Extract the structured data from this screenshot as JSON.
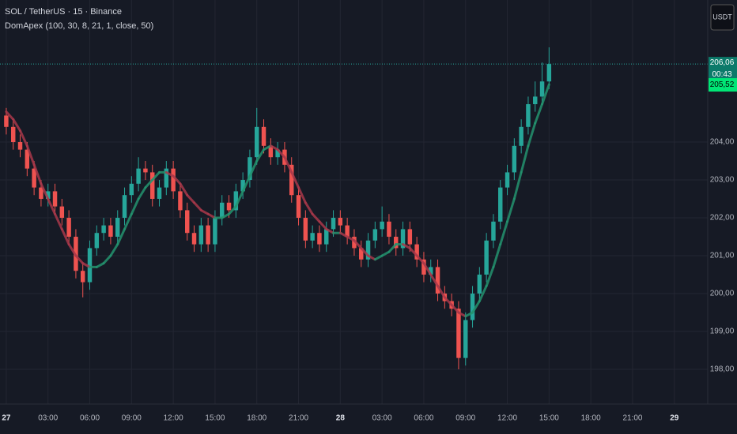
{
  "chart_data": {
    "type": "candlestick",
    "title": "SOL / TetherUS · 15 · Binance",
    "currency": "USDT",
    "countdown": "00:43",
    "last_price": {
      "value": 206.06,
      "label": "206,06"
    },
    "up_color": "#26a69a",
    "down_color": "#ef5350",
    "grid": true,
    "open": [
      204.7,
      204.4,
      204.0,
      203.8,
      203.3,
      202.8,
      202.5,
      202.7,
      202.3,
      202.0,
      201.5,
      200.6,
      200.3,
      201.2,
      201.6,
      201.8,
      201.5,
      202.0,
      202.6,
      202.9,
      203.3,
      203.2,
      202.5,
      202.8,
      203.3,
      202.7,
      202.2,
      201.6,
      201.3,
      201.8,
      201.3,
      202.0,
      202.4,
      202.2,
      202.7,
      203.0,
      203.6,
      204.4,
      203.9,
      203.6,
      203.8,
      203.4,
      202.6,
      202.0,
      201.4,
      201.6,
      201.3,
      201.7,
      202.0,
      201.8,
      201.5,
      201.2,
      200.9,
      201.4,
      201.7,
      201.9,
      201.5,
      201.2,
      201.7,
      201.3,
      200.9,
      200.5,
      200.7,
      200.0,
      199.8,
      199.6,
      198.3,
      199.3,
      200.0,
      200.5,
      201.4,
      201.9,
      202.8,
      203.2,
      203.9,
      204.4,
      205.0,
      205.2,
      205.6
    ],
    "high": [
      204.9,
      204.6,
      204.2,
      204.0,
      203.5,
      203.0,
      202.9,
      202.9,
      202.5,
      202.2,
      201.7,
      200.8,
      201.4,
      201.8,
      202.0,
      202.0,
      202.2,
      202.8,
      203.1,
      203.6,
      203.5,
      203.4,
      203.0,
      203.5,
      203.5,
      202.9,
      202.4,
      201.8,
      202.0,
      202.0,
      202.2,
      202.6,
      202.6,
      202.9,
      203.2,
      203.8,
      204.9,
      204.6,
      204.1,
      204.0,
      204.0,
      203.6,
      202.8,
      202.2,
      201.8,
      201.8,
      201.9,
      202.2,
      202.2,
      202.0,
      201.7,
      201.4,
      201.6,
      201.9,
      202.3,
      202.1,
      201.7,
      201.9,
      201.9,
      201.5,
      201.1,
      200.9,
      200.9,
      200.2,
      200.0,
      199.8,
      199.5,
      200.2,
      200.7,
      201.6,
      202.1,
      203.0,
      203.4,
      204.1,
      204.6,
      205.2,
      205.6,
      206.1,
      206.5
    ],
    "low": [
      204.2,
      203.8,
      203.6,
      203.1,
      202.6,
      202.3,
      202.3,
      202.1,
      201.8,
      201.3,
      200.4,
      199.9,
      200.1,
      201.0,
      201.4,
      201.3,
      201.3,
      201.8,
      202.4,
      202.7,
      203.0,
      202.3,
      202.3,
      202.6,
      202.5,
      202.0,
      201.4,
      201.1,
      201.1,
      201.1,
      201.1,
      201.8,
      202.0,
      202.0,
      202.5,
      202.8,
      203.4,
      203.7,
      203.4,
      203.4,
      203.2,
      202.4,
      201.8,
      201.2,
      201.2,
      201.1,
      201.1,
      201.5,
      201.6,
      201.3,
      201.0,
      200.7,
      200.7,
      201.2,
      201.5,
      201.3,
      201.0,
      201.0,
      201.1,
      200.7,
      200.3,
      200.3,
      199.8,
      199.6,
      199.4,
      198.0,
      198.1,
      199.1,
      199.8,
      200.3,
      201.2,
      201.7,
      202.6,
      203.0,
      203.7,
      204.2,
      204.8,
      205.0,
      205.4
    ],
    "close": [
      204.4,
      204.0,
      203.8,
      203.3,
      202.8,
      202.5,
      202.7,
      202.3,
      202.0,
      201.5,
      200.6,
      200.3,
      201.2,
      201.6,
      201.8,
      201.5,
      202.0,
      202.6,
      202.9,
      203.3,
      203.2,
      202.5,
      202.8,
      203.3,
      202.7,
      202.2,
      201.6,
      201.3,
      201.8,
      201.3,
      202.0,
      202.4,
      202.2,
      202.7,
      203.0,
      203.6,
      204.4,
      203.9,
      203.6,
      203.8,
      203.4,
      202.6,
      202.0,
      201.4,
      201.6,
      201.3,
      201.7,
      202.0,
      201.8,
      201.5,
      201.2,
      200.9,
      201.4,
      201.7,
      201.9,
      201.5,
      201.2,
      201.7,
      201.3,
      200.9,
      200.5,
      200.7,
      200.0,
      199.8,
      199.6,
      198.3,
      199.3,
      200.0,
      200.5,
      201.4,
      201.9,
      202.8,
      203.2,
      203.9,
      204.4,
      205.0,
      205.2,
      205.6,
      206.06
    ],
    "indicator": {
      "name": "DomApex (100, 30, 8, 21, 1, close, 50)",
      "up_color": "#23936f",
      "down_color": "#a8384a",
      "last_value_label": "205,52",
      "values": [
        204.8,
        204.6,
        204.3,
        203.9,
        203.4,
        202.9,
        202.5,
        202.1,
        201.7,
        201.3,
        201.0,
        200.8,
        200.7,
        200.7,
        200.8,
        201.0,
        201.3,
        201.7,
        202.1,
        202.5,
        202.8,
        203.0,
        203.2,
        203.2,
        203.1,
        202.9,
        202.6,
        202.4,
        202.2,
        202.1,
        202.0,
        202.0,
        202.1,
        202.3,
        202.7,
        203.1,
        203.5,
        203.8,
        203.9,
        203.8,
        203.6,
        203.2,
        202.8,
        202.4,
        202.1,
        201.9,
        201.7,
        201.6,
        201.6,
        201.5,
        201.4,
        201.2,
        201.0,
        200.9,
        201.0,
        201.1,
        201.3,
        201.3,
        201.2,
        201.0,
        200.8,
        200.5,
        200.2,
        199.9,
        199.7,
        199.5,
        199.4,
        199.5,
        199.8,
        200.2,
        200.7,
        201.3,
        201.9,
        202.5,
        203.2,
        203.9,
        204.5,
        205.0,
        205.52
      ]
    },
    "xlim": [
      -0.9,
      100.8
    ],
    "xticks": [
      {
        "value": 0,
        "label": "27"
      },
      {
        "value": 6,
        "label": "03:00"
      },
      {
        "value": 12,
        "label": "06:00"
      },
      {
        "value": 18,
        "label": "09:00"
      },
      {
        "value": 24,
        "label": "12:00"
      },
      {
        "value": 30,
        "label": "15:00"
      },
      {
        "value": 36,
        "label": "18:00"
      },
      {
        "value": 42,
        "label": "21:00"
      },
      {
        "value": 48,
        "label": "28"
      },
      {
        "value": 54,
        "label": "03:00"
      },
      {
        "value": 60,
        "label": "06:00"
      },
      {
        "value": 66,
        "label": "09:00"
      },
      {
        "value": 72,
        "label": "12:00"
      },
      {
        "value": 78,
        "label": "15:00"
      },
      {
        "value": 84,
        "label": "18:00"
      },
      {
        "value": 90,
        "label": "21:00"
      },
      {
        "value": 96,
        "label": "29"
      }
    ],
    "ylim": [
      197.23,
      207.75
    ],
    "yticks": [
      {
        "value": 198,
        "label": "198,00"
      },
      {
        "value": 199,
        "label": "199,00"
      },
      {
        "value": 200,
        "label": "200,00"
      },
      {
        "value": 201,
        "label": "201,00"
      },
      {
        "value": 202,
        "label": "202,00"
      },
      {
        "value": 203,
        "label": "203,00"
      },
      {
        "value": 204,
        "label": "204,00"
      }
    ]
  }
}
